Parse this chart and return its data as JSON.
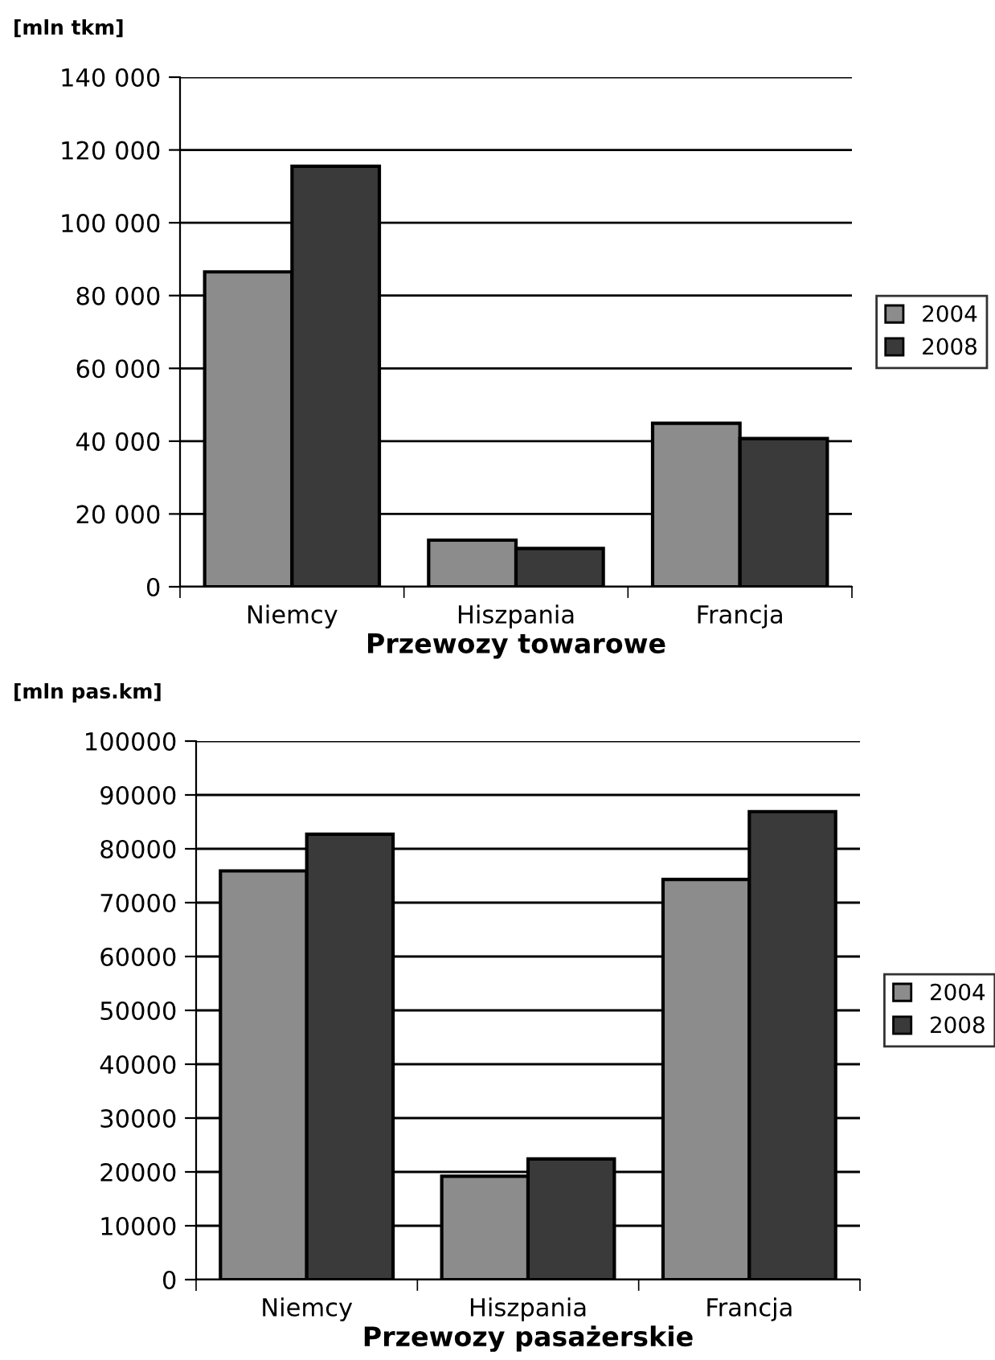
{
  "chart_data": [
    {
      "type": "bar",
      "xlabel": "Przewozy towarowe",
      "ylabel": "[mln tkm]",
      "categories": [
        "Niemcy",
        "Hiszpania",
        "Francja"
      ],
      "series": [
        {
          "name": "2004",
          "color": "#8c8c8c",
          "values": [
            86500,
            12800,
            44900
          ]
        },
        {
          "name": "2008",
          "color": "#3a3a3a",
          "values": [
            115500,
            10500,
            40700
          ]
        }
      ],
      "ylim": [
        0,
        140000
      ],
      "yticks": [
        {
          "value": 0,
          "label": "0"
        },
        {
          "value": 20000,
          "label": "20 000"
        },
        {
          "value": 40000,
          "label": "40 000"
        },
        {
          "value": 60000,
          "label": "60 000"
        },
        {
          "value": 80000,
          "label": "80 000"
        },
        {
          "value": 100000,
          "label": "100 000"
        },
        {
          "value": 120000,
          "label": "120 000"
        },
        {
          "value": 140000,
          "label": "140 000"
        }
      ],
      "grid": "y",
      "legend": "right"
    },
    {
      "type": "bar",
      "xlabel": "Przewozy pasażerskie",
      "ylabel": "[mln pas.km]",
      "categories": [
        "Niemcy",
        "Hiszpania",
        "Francja"
      ],
      "series": [
        {
          "name": "2004",
          "color": "#8c8c8c",
          "values": [
            75900,
            19200,
            74300
          ]
        },
        {
          "name": "2008",
          "color": "#3a3a3a",
          "values": [
            82700,
            22400,
            86900
          ]
        }
      ],
      "ylim": [
        0,
        100000
      ],
      "yticks": [
        0,
        10000,
        20000,
        30000,
        40000,
        50000,
        60000,
        70000,
        80000,
        90000,
        100000
      ],
      "grid": "y",
      "legend": "right"
    }
  ]
}
